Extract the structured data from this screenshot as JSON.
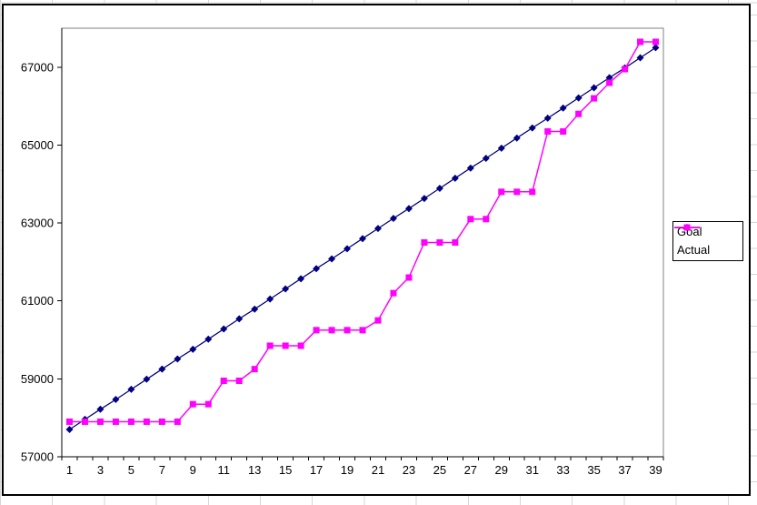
{
  "chart_data": {
    "type": "line",
    "title": "",
    "xlabel": "",
    "ylabel": "",
    "grid": false,
    "legend_position": "right",
    "x": [
      1,
      2,
      3,
      4,
      5,
      6,
      7,
      8,
      9,
      10,
      11,
      12,
      13,
      14,
      15,
      16,
      17,
      18,
      19,
      20,
      21,
      22,
      23,
      24,
      25,
      26,
      27,
      28,
      29,
      30,
      31,
      32,
      33,
      34,
      35,
      36,
      37,
      38,
      39
    ],
    "x_tick_labels": [
      "1",
      "3",
      "5",
      "7",
      "9",
      "11",
      "13",
      "15",
      "17",
      "19",
      "21",
      "23",
      "25",
      "27",
      "29",
      "31",
      "33",
      "35",
      "37",
      "39"
    ],
    "y_ticks": [
      57000,
      59000,
      61000,
      63000,
      65000,
      67000
    ],
    "y_tick_labels": [
      "57000",
      "59000",
      "61000",
      "63000",
      "65000",
      "67000"
    ],
    "ylim": [
      57000,
      68000
    ],
    "series": [
      {
        "name": "Goal",
        "color": "#000080",
        "marker": "diamond",
        "values": [
          57700,
          57960,
          58220,
          58470,
          58730,
          58990,
          59250,
          59510,
          59760,
          60020,
          60280,
          60540,
          60790,
          61050,
          61310,
          61570,
          61830,
          62080,
          62340,
          62600,
          62860,
          63120,
          63370,
          63630,
          63890,
          64150,
          64410,
          64660,
          64920,
          65180,
          65440,
          65690,
          65950,
          66210,
          66470,
          66730,
          66980,
          67240,
          67500
        ]
      },
      {
        "name": "Actual",
        "color": "#FF00FF",
        "marker": "square",
        "values": [
          57900,
          57900,
          57900,
          57900,
          57900,
          57900,
          57900,
          57900,
          58350,
          58350,
          58950,
          58950,
          59250,
          59850,
          59850,
          59850,
          60250,
          60250,
          60250,
          60250,
          60500,
          61200,
          61600,
          62500,
          62500,
          62500,
          63100,
          63100,
          63800,
          63800,
          63800,
          65350,
          65350,
          65800,
          66200,
          66600,
          66950,
          67650,
          67650
        ]
      }
    ]
  },
  "colors": {
    "axis": "#000000",
    "plot_border": "#808080",
    "chart_border": "#000000",
    "worksheet_grid": "#d6d6d6",
    "background": "#ffffff"
  }
}
